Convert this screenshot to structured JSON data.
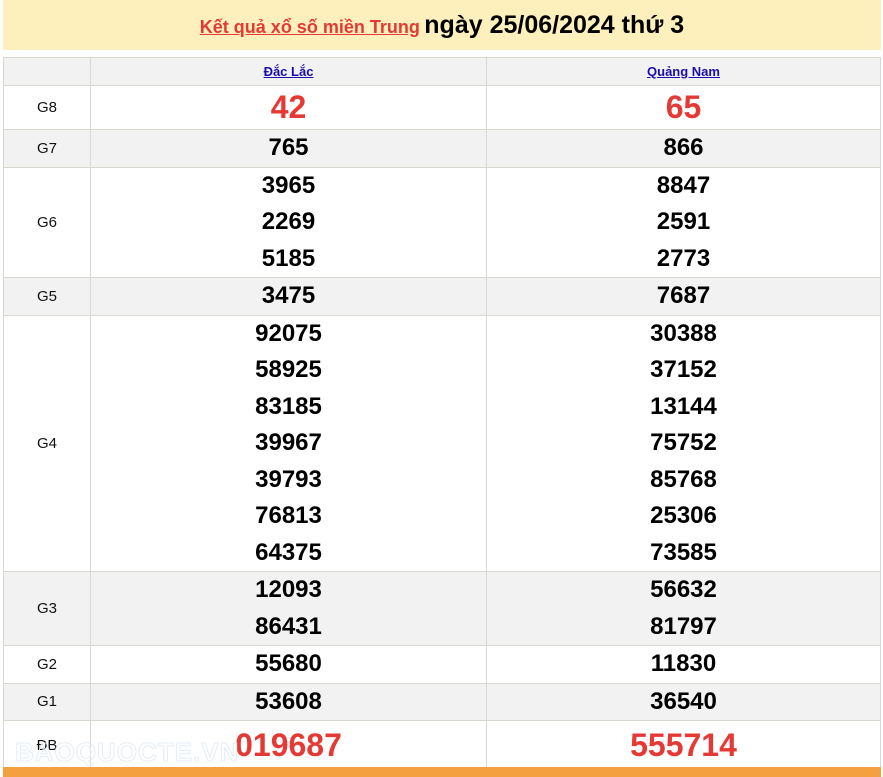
{
  "header": {
    "link": "Kết quả xổ số miền Trung",
    "date": "ngày 25/06/2024 thứ 3"
  },
  "provinces": [
    "Đắc Lắc",
    "Quảng Nam"
  ],
  "rows": [
    {
      "label": "G8",
      "a": [
        "42"
      ],
      "b": [
        "65"
      ]
    },
    {
      "label": "G7",
      "a": [
        "765"
      ],
      "b": [
        "866"
      ]
    },
    {
      "label": "G6",
      "a": [
        "3965",
        "2269",
        "5185"
      ],
      "b": [
        "8847",
        "2591",
        "2773"
      ]
    },
    {
      "label": "G5",
      "a": [
        "3475"
      ],
      "b": [
        "7687"
      ]
    },
    {
      "label": "G4",
      "a": [
        "92075",
        "58925",
        "83185",
        "39967",
        "39793",
        "76813",
        "64375"
      ],
      "b": [
        "30388",
        "37152",
        "13144",
        "75752",
        "85768",
        "25306",
        "73585"
      ]
    },
    {
      "label": "G3",
      "a": [
        "12093",
        "86431"
      ],
      "b": [
        "56632",
        "81797"
      ]
    },
    {
      "label": "G2",
      "a": [
        "55680"
      ],
      "b": [
        "11830"
      ]
    },
    {
      "label": "G1",
      "a": [
        "53608"
      ],
      "b": [
        "36540"
      ]
    },
    {
      "label": "ĐB",
      "a": [
        "019687"
      ],
      "b": [
        "555714"
      ]
    }
  ],
  "watermark": "BAOQUOCTE.VN",
  "colors": {
    "accent": "#e53935",
    "title_bg": "#fdf0bd",
    "footer": "#f4a040"
  }
}
